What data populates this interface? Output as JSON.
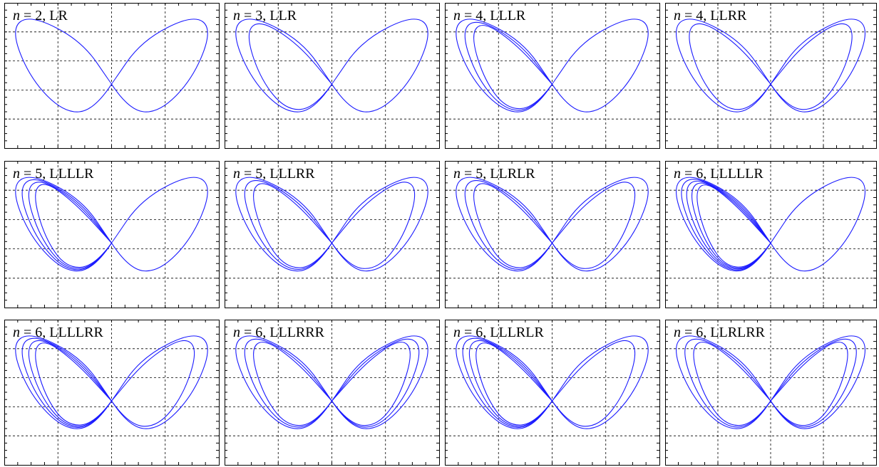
{
  "chart_data": [
    {
      "type": "line",
      "title": "n = 2, LR",
      "n": "2",
      "word": "LR",
      "loops": {
        "L": 1,
        "R": 1
      },
      "series_color": "#1a1aff",
      "grid": true
    },
    {
      "type": "line",
      "title": "n = 3, LLR",
      "n": "3",
      "word": "LLR",
      "loops": {
        "L": 2,
        "R": 1
      },
      "series_color": "#1a1aff",
      "grid": true
    },
    {
      "type": "line",
      "title": "n = 4, LLLR",
      "n": "4",
      "word": "LLLR",
      "loops": {
        "L": 3,
        "R": 1
      },
      "series_color": "#1a1aff",
      "grid": true
    },
    {
      "type": "line",
      "title": "n = 4, LLRR",
      "n": "4",
      "word": "LLRR",
      "loops": {
        "L": 2,
        "R": 2
      },
      "series_color": "#1a1aff",
      "grid": true
    },
    {
      "type": "line",
      "title": "n = 5, LLLLR",
      "n": "5",
      "word": "LLLLR",
      "loops": {
        "L": 4,
        "R": 1
      },
      "series_color": "#1a1aff",
      "grid": true
    },
    {
      "type": "line",
      "title": "n = 5, LLLRR",
      "n": "5",
      "word": "LLLRR",
      "loops": {
        "L": 3,
        "R": 2
      },
      "series_color": "#1a1aff",
      "grid": true
    },
    {
      "type": "line",
      "title": "n = 5, LLRLR",
      "n": "5",
      "word": "LLRLR",
      "loops": {
        "L": 3,
        "R": 2
      },
      "series_color": "#1a1aff",
      "grid": true
    },
    {
      "type": "line",
      "title": "n = 6, LLLLLR",
      "n": "6",
      "word": "LLLLLR",
      "loops": {
        "L": 5,
        "R": 1
      },
      "series_color": "#1a1aff",
      "grid": true
    },
    {
      "type": "line",
      "title": "n = 6, LLLLRR",
      "n": "6",
      "word": "LLLLRR",
      "loops": {
        "L": 4,
        "R": 2
      },
      "series_color": "#1a1aff",
      "grid": true
    },
    {
      "type": "line",
      "title": "n = 6, LLLRRR",
      "n": "6",
      "word": "LLLRRR",
      "loops": {
        "L": 3,
        "R": 3
      },
      "series_color": "#1a1aff",
      "grid": true
    },
    {
      "type": "line",
      "title": "n = 6, LLLRLR",
      "n": "6",
      "word": "LLLRLR",
      "loops": {
        "L": 4,
        "R": 2
      },
      "series_color": "#1a1aff",
      "grid": true
    },
    {
      "type": "line",
      "title": "n = 6, LLRLRR",
      "n": "6",
      "word": "LLRLRR",
      "loops": {
        "L": 3,
        "R": 3
      },
      "series_color": "#1a1aff",
      "grid": true
    }
  ]
}
